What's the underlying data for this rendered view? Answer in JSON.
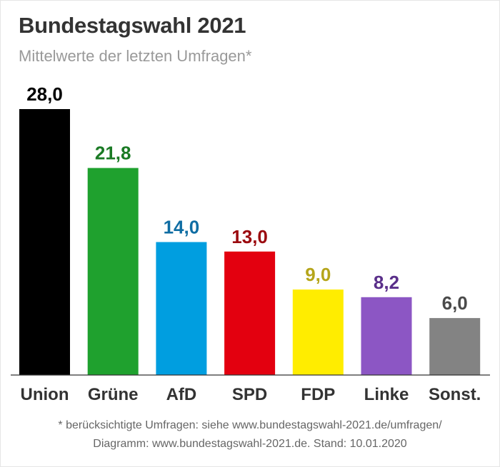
{
  "header": {
    "title": "Bundestagswahl 2021",
    "subtitle": "Mittelwerte der letzten Umfragen*"
  },
  "footer": {
    "note": "* berücksichtigte Umfragen: siehe www.bundestagswahl-2021.de/umfragen/",
    "source": "Diagramm: www.bundestagswahl-2021.de. Stand: 10.01.2020"
  },
  "chart_data": {
    "type": "bar",
    "title": "Bundestagswahl 2021",
    "subtitle": "Mittelwerte der letzten Umfragen*",
    "xlabel": "",
    "ylabel": "",
    "ylim": [
      0,
      28
    ],
    "grid": false,
    "legend": "none",
    "categories": [
      "Union",
      "Grüne",
      "AfD",
      "SPD",
      "FDP",
      "Linke",
      "Sonst."
    ],
    "values": [
      28.0,
      21.8,
      14.0,
      13.0,
      9.0,
      8.2,
      6.0
    ],
    "data_labels": [
      "28,0",
      "21,8",
      "14,0",
      "13,0",
      "9,0",
      "8,2",
      "6,0"
    ],
    "bar_colors": [
      "#000000",
      "#1fa12e",
      "#009ee0",
      "#e3000f",
      "#ffed00",
      "#8c56c4",
      "#838383"
    ],
    "label_colors": [
      "#000000",
      "#1a7a24",
      "#0f6da3",
      "#9b0a0f",
      "#b5a51a",
      "#5a2f8a",
      "#4a4a4a"
    ]
  }
}
